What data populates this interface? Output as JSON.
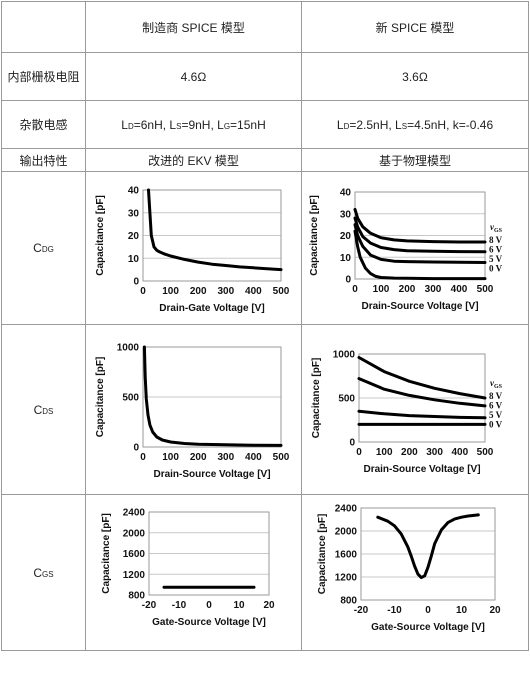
{
  "table": {
    "header": {
      "col1": "制造商 SPICE 模型",
      "col2": "新 SPICE 模型"
    },
    "rows": {
      "gate_resistance": {
        "label": "内部栅极电阻",
        "col1": "4.6Ω",
        "col2": "3.6Ω"
      },
      "stray_inductance": {
        "label": "杂散电感",
        "col1": [
          "L",
          "D",
          "=6nH, L",
          "S",
          "=9nH, L",
          "G",
          "=15nH"
        ],
        "col2": [
          "L",
          "D",
          "=2.5nH, L",
          "S",
          "=4.5nH, k=-0.46"
        ]
      },
      "output": {
        "label": "输出特性",
        "col1": "改进的 EKV 模型",
        "col2": "基于物理模型"
      },
      "cdg": {
        "label": [
          "C",
          "DG"
        ]
      },
      "cds": {
        "label": [
          "C",
          "DS"
        ]
      },
      "cgs": {
        "label": [
          "C",
          "GS"
        ]
      }
    }
  },
  "chart_data": [
    {
      "id": "cdg_manufacturer",
      "type": "line",
      "xlabel": "Drain-Gate Voltage [V]",
      "ylabel": "Capacitance  [pF]",
      "xlim": [
        0,
        500
      ],
      "ylim": [
        0,
        40
      ],
      "xticks": [
        0,
        100,
        200,
        300,
        400,
        500
      ],
      "yticks": [
        0,
        10,
        20,
        30,
        40
      ],
      "grid": "horizontal",
      "series": [
        {
          "x": [
            20,
            25,
            30,
            40,
            50,
            60,
            80,
            100,
            150,
            200,
            250,
            300,
            350,
            400,
            450,
            500
          ],
          "y": [
            40,
            30,
            20,
            15,
            13.5,
            12.8,
            11.8,
            11,
            9.5,
            8.3,
            7.4,
            6.8,
            6.2,
            5.8,
            5.4,
            5
          ]
        }
      ]
    },
    {
      "id": "cdg_new",
      "type": "line",
      "xlabel": "Drain-Source Voltage [V]",
      "ylabel": "Capacitance  [pF]",
      "xlim": [
        0,
        500
      ],
      "ylim": [
        0,
        40
      ],
      "xticks": [
        0,
        100,
        200,
        300,
        400,
        500
      ],
      "yticks": [
        0,
        10,
        20,
        30,
        40
      ],
      "grid": "horizontal",
      "legend_title": [
        "v",
        "GS"
      ],
      "legend": [
        "8 V",
        "6 V",
        "5 V",
        "0 V"
      ],
      "series": [
        {
          "name": "8 V",
          "x": [
            0,
            10,
            30,
            60,
            100,
            150,
            200,
            300,
            400,
            500
          ],
          "y": [
            32,
            28,
            24,
            21,
            19,
            18,
            17.5,
            17.2,
            17,
            17
          ]
        },
        {
          "name": "6 V",
          "x": [
            0,
            10,
            30,
            60,
            100,
            150,
            200,
            300,
            400,
            500
          ],
          "y": [
            28,
            24,
            19.5,
            16.5,
            14.5,
            13.5,
            13,
            12.8,
            12.6,
            12.5
          ]
        },
        {
          "name": "5 V",
          "x": [
            0,
            10,
            30,
            60,
            100,
            150,
            200,
            300,
            400,
            500
          ],
          "y": [
            25,
            20,
            15,
            11,
            9,
            8.2,
            8,
            7.8,
            7.7,
            7.6
          ]
        },
        {
          "name": "0 V",
          "x": [
            0,
            10,
            20,
            40,
            60,
            80,
            100,
            150,
            200,
            300,
            400,
            500
          ],
          "y": [
            22,
            15,
            10,
            5,
            2.5,
            1.2,
            0.7,
            0.4,
            0.3,
            0.2,
            0.2,
            0.2
          ]
        }
      ]
    },
    {
      "id": "cds_manufacturer",
      "type": "line",
      "xlabel": "Drain-Source Voltage [V]",
      "ylabel": "Capacitance  [pF]",
      "xlim": [
        0,
        500
      ],
      "ylim": [
        0,
        1000
      ],
      "xticks": [
        0,
        100,
        200,
        300,
        400,
        500
      ],
      "yticks": [
        0,
        500,
        1000
      ],
      "grid": "horizontal",
      "series": [
        {
          "x": [
            5,
            8,
            12,
            18,
            25,
            35,
            50,
            70,
            100,
            150,
            200,
            300,
            400,
            500
          ],
          "y": [
            1000,
            700,
            480,
            320,
            220,
            150,
            100,
            70,
            50,
            35,
            28,
            22,
            18,
            16
          ]
        }
      ]
    },
    {
      "id": "cds_new",
      "type": "line",
      "xlabel": "Drain-Source Voltage [V]",
      "ylabel": "Capacitance  [pF]",
      "xlim": [
        0,
        500
      ],
      "ylim": [
        0,
        1000
      ],
      "xticks": [
        0,
        100,
        200,
        300,
        400,
        500
      ],
      "yticks": [
        0,
        500,
        1000
      ],
      "grid": "horizontal",
      "legend_title": [
        "v",
        "GS"
      ],
      "legend": [
        "8 V",
        "6 V",
        "5 V",
        "0 V"
      ],
      "series": [
        {
          "name": "8 V",
          "x": [
            0,
            100,
            200,
            300,
            400,
            500
          ],
          "y": [
            960,
            800,
            690,
            610,
            550,
            500
          ]
        },
        {
          "name": "6 V",
          "x": [
            0,
            100,
            200,
            300,
            400,
            500
          ],
          "y": [
            720,
            600,
            530,
            480,
            440,
            410
          ]
        },
        {
          "name": "5 V",
          "x": [
            0,
            100,
            200,
            300,
            400,
            500
          ],
          "y": [
            350,
            320,
            300,
            290,
            280,
            275
          ]
        },
        {
          "name": "0 V",
          "x": [
            0,
            100,
            200,
            300,
            400,
            500
          ],
          "y": [
            200,
            200,
            200,
            200,
            200,
            200
          ]
        }
      ]
    },
    {
      "id": "cgs_manufacturer",
      "type": "line",
      "xlabel": "Gate-Source Voltage [V]",
      "ylabel": "Capacitance [pF]",
      "xlim": [
        -20,
        20
      ],
      "ylim": [
        800,
        2400
      ],
      "xticks": [
        -20,
        -10,
        0,
        10,
        20
      ],
      "yticks": [
        800,
        1200,
        1600,
        2000,
        2400
      ],
      "grid": "horizontal",
      "series": [
        {
          "x": [
            -15,
            15
          ],
          "y": [
            950,
            950
          ]
        }
      ]
    },
    {
      "id": "cgs_new",
      "type": "line",
      "xlabel": "Gate-Source Voltage [V]",
      "ylabel": "Capacitance [pF]",
      "xlim": [
        -20,
        20
      ],
      "ylim": [
        800,
        2400
      ],
      "xticks": [
        -20,
        -10,
        0,
        10,
        20
      ],
      "yticks": [
        800,
        1200,
        1600,
        2000,
        2400
      ],
      "grid": "horizontal",
      "series": [
        {
          "x": [
            -15,
            -12,
            -10,
            -8,
            -6,
            -5,
            -4,
            -3,
            -2,
            -1,
            0,
            1,
            2,
            4,
            6,
            8,
            10,
            12,
            15
          ],
          "y": [
            2240,
            2170,
            2090,
            1950,
            1720,
            1560,
            1390,
            1250,
            1190,
            1220,
            1370,
            1570,
            1780,
            2020,
            2150,
            2210,
            2240,
            2260,
            2280
          ]
        }
      ]
    }
  ]
}
